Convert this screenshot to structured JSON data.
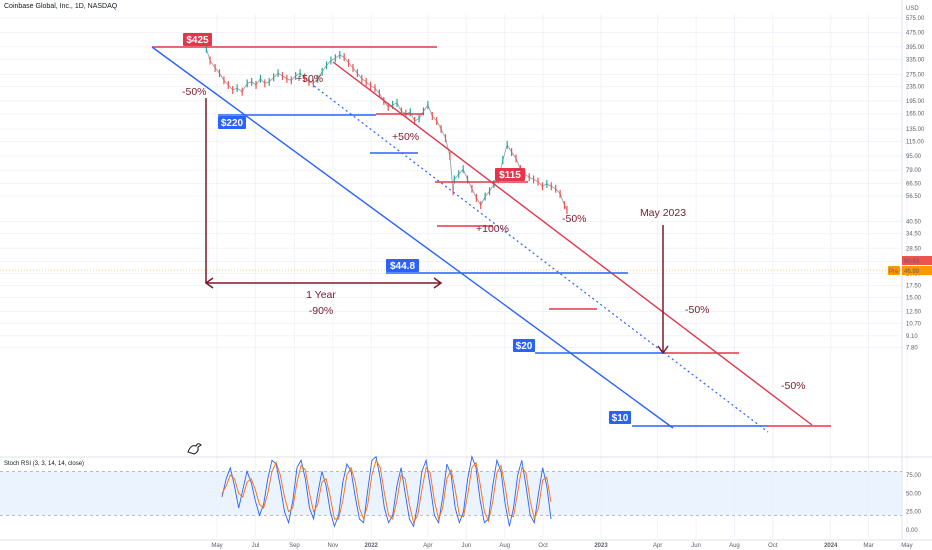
{
  "header": {
    "symbol_line": "Coinbase Global, Inc., 1D, NASDAQ",
    "currency": "USD"
  },
  "colors": {
    "red": "#e3364b",
    "blue": "#2962ff",
    "dark_red": "#7b1a2b",
    "up_candle": "#26a69a",
    "down_candle": "#ef5350",
    "rsi_k": "#2962ff",
    "rsi_d": "#ff6d00",
    "rsi_band": "#e3effd"
  },
  "chart_data": [
    {
      "type": "line",
      "title": "",
      "scale": "log",
      "ylim": [
        7.0,
        600
      ],
      "x_ticks": [
        "May",
        "Jul",
        "Sep",
        "Nov",
        "2022",
        "Apr",
        "Jun",
        "Aug",
        "Oct",
        "2023",
        "Apr",
        "Jun",
        "Aug",
        "Oct",
        "2024",
        "Mar",
        "May"
      ],
      "y_ticks": [
        575.0,
        475.0,
        395.0,
        335.0,
        275.0,
        235.0,
        195.0,
        165.0,
        135.0,
        115.0,
        95.0,
        79.0,
        66.5,
        56.5,
        40.5,
        34.5,
        28.5,
        24.0,
        20.5,
        17.5,
        15.0,
        12.5,
        10.7,
        9.1,
        7.8
      ],
      "last_price_labels": [
        "50.83",
        "46.99"
      ],
      "pre_label": "Pre",
      "series": [
        {
          "x": [
            "2021-04-14",
            "2021-04-20",
            "2021-04-28",
            "2021-05-05",
            "2021-05-12",
            "2021-05-19",
            "2021-05-26",
            "2021-06-02",
            "2021-06-10",
            "2021-06-18",
            "2021-06-25",
            "2021-07-02",
            "2021-07-09",
            "2021-07-16",
            "2021-07-23",
            "2021-07-30",
            "2021-08-06",
            "2021-08-13",
            "2021-08-20",
            "2021-08-27",
            "2021-09-03",
            "2021-09-10",
            "2021-09-17",
            "2021-09-24",
            "2021-10-01",
            "2021-10-08",
            "2021-10-15",
            "2021-10-22",
            "2021-10-29",
            "2021-11-05",
            "2021-11-12",
            "2021-11-19",
            "2021-11-26",
            "2021-12-03",
            "2021-12-10",
            "2021-12-17",
            "2021-12-24",
            "2021-12-31",
            "2022-01-07",
            "2022-01-14",
            "2022-01-21",
            "2022-01-28",
            "2022-02-04",
            "2022-02-11",
            "2022-02-18",
            "2022-02-25",
            "2022-03-04",
            "2022-03-11",
            "2022-03-18",
            "2022-03-25",
            "2022-04-01",
            "2022-04-08",
            "2022-04-15",
            "2022-04-22",
            "2022-04-29",
            "2022-05-06",
            "2022-05-11",
            "2022-05-13",
            "2022-05-20",
            "2022-05-27",
            "2022-06-03",
            "2022-06-10",
            "2022-06-17",
            "2022-06-24",
            "2022-07-01",
            "2022-07-08",
            "2022-07-15",
            "2022-07-22",
            "2022-07-29",
            "2022-08-05",
            "2022-08-12",
            "2022-08-19",
            "2022-08-26",
            "2022-09-02",
            "2022-09-09",
            "2022-09-16",
            "2022-09-23",
            "2022-09-30",
            "2022-10-07",
            "2022-10-14",
            "2022-10-21",
            "2022-10-28",
            "2022-11-04",
            "2022-11-08"
          ],
          "values": [
            385,
            330,
            300,
            280,
            255,
            240,
            225,
            230,
            220,
            245,
            250,
            240,
            260,
            245,
            250,
            265,
            280,
            270,
            260,
            255,
            270,
            280,
            265,
            250,
            245,
            260,
            285,
            310,
            330,
            340,
            355,
            345,
            320,
            300,
            280,
            260,
            250,
            238,
            230,
            215,
            195,
            180,
            185,
            190,
            170,
            165,
            168,
            150,
            155,
            170,
            185,
            160,
            150,
            135,
            120,
            95,
            60,
            70,
            75,
            80,
            70,
            62,
            55,
            50,
            56,
            60,
            66,
            70,
            90,
            110,
            100,
            92,
            80,
            75,
            72,
            70,
            68,
            64,
            66,
            64,
            62,
            58,
            50,
            47
          ]
        }
      ],
      "annotations": {
        "price_boxes_red": [
          "$425",
          "$115"
        ],
        "price_boxes_blue": [
          "$220",
          "$44.8",
          "$20",
          "$10"
        ],
        "pct_labels": [
          "-50%",
          "+50%",
          "+50%",
          "+100%",
          "-50%",
          "-50%",
          "-50%"
        ],
        "one_year": "1 Year",
        "ninety": "-90%",
        "may_2023": "May 2023"
      }
    },
    {
      "type": "line",
      "title": "Stoch RSI (3, 3, 14, 14, close)",
      "ylim": [
        0,
        100
      ],
      "y_ticks": [
        "75.00",
        "50.00",
        "25.00",
        "0.00"
      ],
      "bands": [
        20,
        80
      ],
      "series": [
        {
          "name": "K",
          "values": [
            45,
            70,
            85,
            60,
            30,
            55,
            80,
            65,
            40,
            20,
            35,
            70,
            95,
            90,
            60,
            25,
            10,
            40,
            85,
            95,
            70,
            30,
            15,
            50,
            80,
            60,
            25,
            5,
            20,
            65,
            90,
            80,
            45,
            15,
            10,
            55,
            95,
            100,
            70,
            30,
            10,
            20,
            60,
            85,
            50,
            15,
            5,
            35,
            80,
            95,
            60,
            20,
            10,
            45,
            90,
            75,
            30,
            10,
            25,
            70,
            100,
            85,
            40,
            10,
            15,
            60,
            95,
            80,
            35,
            5,
            30,
            75,
            95,
            60,
            20,
            10,
            50,
            85,
            60,
            15
          ]
        },
        {
          "name": "D",
          "values": [
            50,
            60,
            75,
            70,
            50,
            45,
            65,
            70,
            55,
            35,
            30,
            50,
            80,
            92,
            75,
            45,
            25,
            30,
            65,
            88,
            82,
            50,
            25,
            35,
            65,
            70,
            45,
            15,
            15,
            40,
            75,
            85,
            65,
            30,
            15,
            35,
            75,
            95,
            85,
            50,
            20,
            15,
            40,
            75,
            70,
            35,
            10,
            20,
            55,
            85,
            78,
            40,
            15,
            30,
            70,
            82,
            55,
            20,
            18,
            48,
            85,
            92,
            62,
            25,
            12,
            38,
            78,
            88,
            58,
            20,
            18,
            52,
            85,
            78,
            40,
            15,
            30,
            68,
            72,
            38
          ]
        }
      ]
    }
  ]
}
